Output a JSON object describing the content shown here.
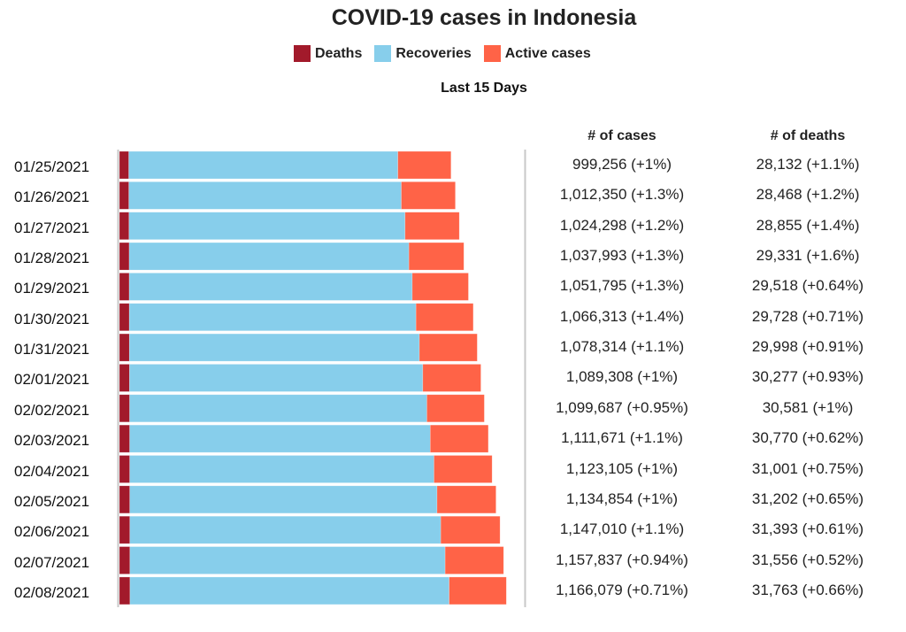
{
  "title": "COVID-19 cases in Indonesia",
  "subtitle": "Last 15 Days",
  "legend": [
    {
      "label": "Deaths",
      "color": "#A21A2B"
    },
    {
      "label": "Recoveries",
      "color": "#87CEEB"
    },
    {
      "label": "Active cases",
      "color": "#FF6347"
    }
  ],
  "table": {
    "headers": [
      "# of cases",
      "# of deaths"
    ]
  },
  "chart_data": {
    "type": "bar",
    "orientation": "horizontal",
    "stacked": true,
    "title": "COVID-19 cases in Indonesia",
    "subtitle": "Last 15 Days",
    "xlabel": "",
    "ylabel": "",
    "xlim": [
      0,
      1166079
    ],
    "grid": false,
    "legend_position": "top-center",
    "categories": [
      "01/25/2021",
      "01/26/2021",
      "01/27/2021",
      "01/28/2021",
      "01/29/2021",
      "01/30/2021",
      "01/31/2021",
      "02/01/2021",
      "02/02/2021",
      "02/03/2021",
      "02/04/2021",
      "02/05/2021",
      "02/06/2021",
      "02/07/2021",
      "02/08/2021"
    ],
    "series": [
      {
        "name": "Deaths",
        "color": "#A21A2B",
        "values": [
          28132,
          28468,
          28855,
          29331,
          29518,
          29728,
          29998,
          30277,
          30581,
          30770,
          31001,
          31202,
          31393,
          31556,
          31763
        ]
      },
      {
        "name": "Recoveries",
        "color": "#87CEEB",
        "values": [
          811000,
          821000,
          832000,
          843000,
          853000,
          864000,
          874000,
          884000,
          896000,
          906000,
          917000,
          926000,
          937000,
          950000,
          962000
        ]
      },
      {
        "name": "Active cases",
        "color": "#FF6347",
        "values": [
          160124,
          162882,
          163443,
          165662,
          169277,
          172585,
          174316,
          175031,
          173106,
          174901,
          175104,
          177652,
          178617,
          176281,
          172316
        ]
      }
    ],
    "totals": [
      999256,
      1012350,
      1024298,
      1037993,
      1051795,
      1066313,
      1078314,
      1089308,
      1099687,
      1111671,
      1123105,
      1134854,
      1147010,
      1157837,
      1166079
    ],
    "cases_text": [
      "999,256 (+1%)",
      "1,012,350 (+1.3%)",
      "1,024,298 (+1.2%)",
      "1,037,993 (+1.3%)",
      "1,051,795 (+1.3%)",
      "1,066,313 (+1.4%)",
      "1,078,314 (+1.1%)",
      "1,089,308 (+1%)",
      "1,099,687 (+0.95%)",
      "1,111,671 (+1.1%)",
      "1,123,105 (+1%)",
      "1,134,854 (+1%)",
      "1,147,010 (+1.1%)",
      "1,157,837 (+0.94%)",
      "1,166,079 (+0.71%)"
    ],
    "deaths_text": [
      "28,132 (+1.1%)",
      "28,468 (+1.2%)",
      "28,855 (+1.4%)",
      "29,331 (+1.6%)",
      "29,518 (+0.64%)",
      "29,728 (+0.71%)",
      "29,998 (+0.91%)",
      "30,277 (+0.93%)",
      "30,581 (+1%)",
      "30,770 (+0.62%)",
      "31,001 (+0.75%)",
      "31,202 (+0.65%)",
      "31,393 (+0.61%)",
      "31,556 (+0.52%)",
      "31,763 (+0.66%)"
    ]
  }
}
